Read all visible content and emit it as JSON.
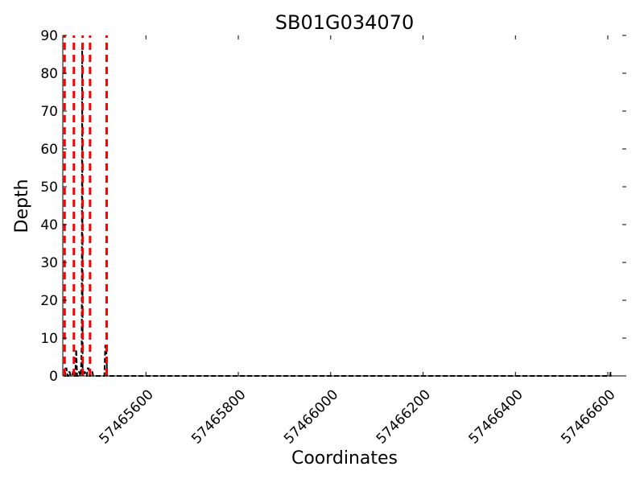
{
  "chart_data": {
    "type": "line",
    "title": "SB01G034070",
    "xlabel": "Coordinates",
    "ylabel": "Depth",
    "xlim": [
      57465420,
      57466640
    ],
    "ylim": [
      0,
      90
    ],
    "x_ticks": [
      57465600,
      57465800,
      57466000,
      57466200,
      57466400,
      57466600
    ],
    "y_ticks": [
      0,
      10,
      20,
      30,
      40,
      50,
      60,
      70,
      80,
      90
    ],
    "grid": false,
    "series": [
      {
        "color": "#000000",
        "x": [
          57465423,
          57465425,
          57465426,
          57465428,
          57465430,
          57465432,
          57465433,
          57465435,
          57465437,
          57465440,
          57465442,
          57465444,
          57465446,
          57465447,
          57465449,
          57465451,
          57465453,
          57465455,
          57465456,
          57465458,
          57465459,
          57465460,
          57465461,
          57465462,
          57465463,
          57465464,
          57465466,
          57465468,
          57465470,
          57465472,
          57465474,
          57465476,
          57465478,
          57465480,
          57465482,
          57465484,
          57465486,
          57465510,
          57465512,
          57465514,
          57465516,
          57465518,
          57465530,
          57466500,
          57466600,
          57466605,
          57466606,
          57466607
        ],
        "y": [
          0,
          0,
          2,
          2,
          0,
          0,
          1,
          1,
          0,
          0,
          1,
          1,
          0,
          0,
          7,
          0,
          0,
          1,
          1,
          0,
          0,
          4,
          8,
          88,
          0,
          0,
          1,
          1,
          0,
          0,
          2,
          2,
          0,
          0,
          1,
          1,
          0,
          0,
          8,
          8,
          0,
          0,
          0,
          0,
          0,
          0,
          1,
          0
        ]
      }
    ],
    "vertical_lines": {
      "color": "#ff0000",
      "style": "dashed",
      "x": [
        57465424,
        57465444,
        57465463,
        57465479,
        57465515
      ]
    }
  }
}
